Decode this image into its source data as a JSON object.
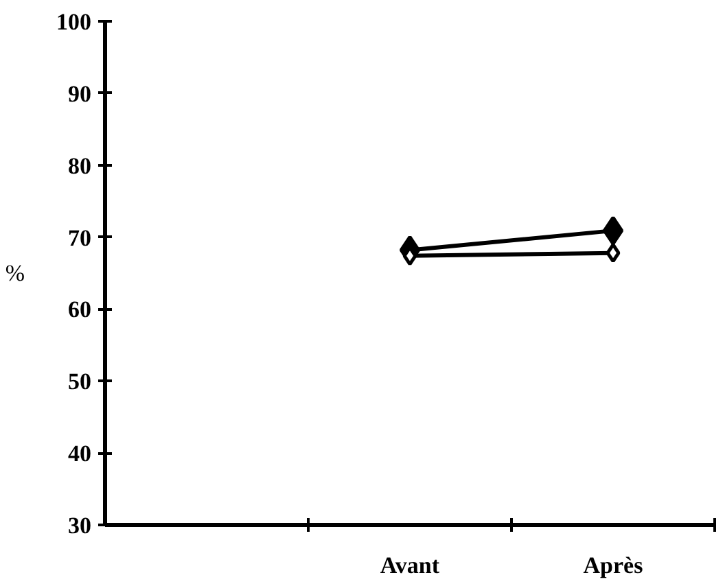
{
  "chart_data": {
    "type": "line",
    "ylabel": "%",
    "categories": [
      null,
      "Avant",
      "Après"
    ],
    "series": [
      {
        "color": "#000000",
        "values": [
          null,
          68.2,
          70.9
        ]
      },
      {
        "color": "#000000",
        "values": [
          null,
          67.4,
          67.8
        ]
      }
    ],
    "ylim": [
      30,
      100
    ],
    "yticks": [
      30,
      40,
      50,
      60,
      70,
      80,
      90,
      100
    ],
    "grid": false,
    "marker": "diamond",
    "line_style": "solid"
  }
}
